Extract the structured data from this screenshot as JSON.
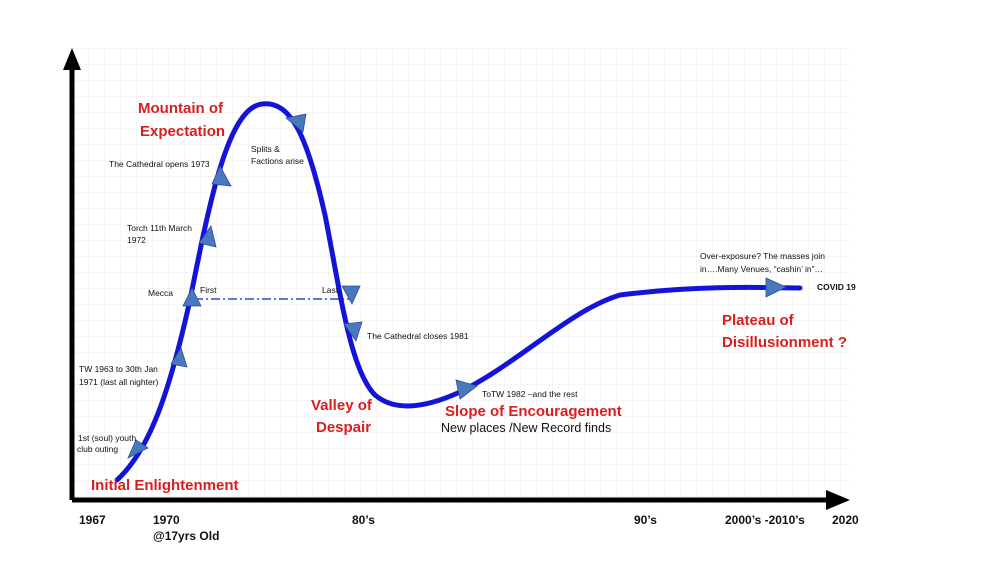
{
  "colors": {
    "curve": "#1414d8",
    "arrow_marker": "#4a78c0",
    "phase_label": "#d81e1e",
    "axis": "#000000",
    "dashed_line": "#2a4fc8"
  },
  "phases": {
    "initial": "Initial Enlightenment",
    "mountain_line1": "Mountain of",
    "mountain_line2": "Expectation",
    "valley_line1": "Valley of",
    "valley_line2": "Despair",
    "slope": "Slope of  Encouragement",
    "slope_sub": "New places /New Record finds",
    "plateau_line1": "Plateau of",
    "plateau_line2": "Disillusionment ?"
  },
  "annotations": {
    "youth_outing_line1": "1st (soul) youth",
    "youth_outing_line2": "club outing",
    "tw_line1": "TW 1963 to 30th Jan",
    "tw_line2": "1971  (last all nighter)",
    "mecca": "Mecca",
    "first": "First",
    "last": "Last",
    "torch_line1": "Torch 11th March",
    "torch_line2": "1972",
    "cathedral_opens": "The Cathedral opens 1973",
    "splits_line1": "Splits &",
    "splits_line2": "Factions arise",
    "cathedral_closes": "The Cathedral closes 1981",
    "totw": "ToTW 1982 –and the rest",
    "overexposure_line1": "Over-exposure? The masses join",
    "overexposure_line2": "in….Many Venues, “cashin’ in”…",
    "covid": "COVID 19"
  },
  "x_axis": {
    "ticks": [
      "1967",
      "1970",
      "80’s",
      "90’s",
      "2000’s -2010’s",
      "2020"
    ],
    "age_note": "@17yrs Old"
  }
}
